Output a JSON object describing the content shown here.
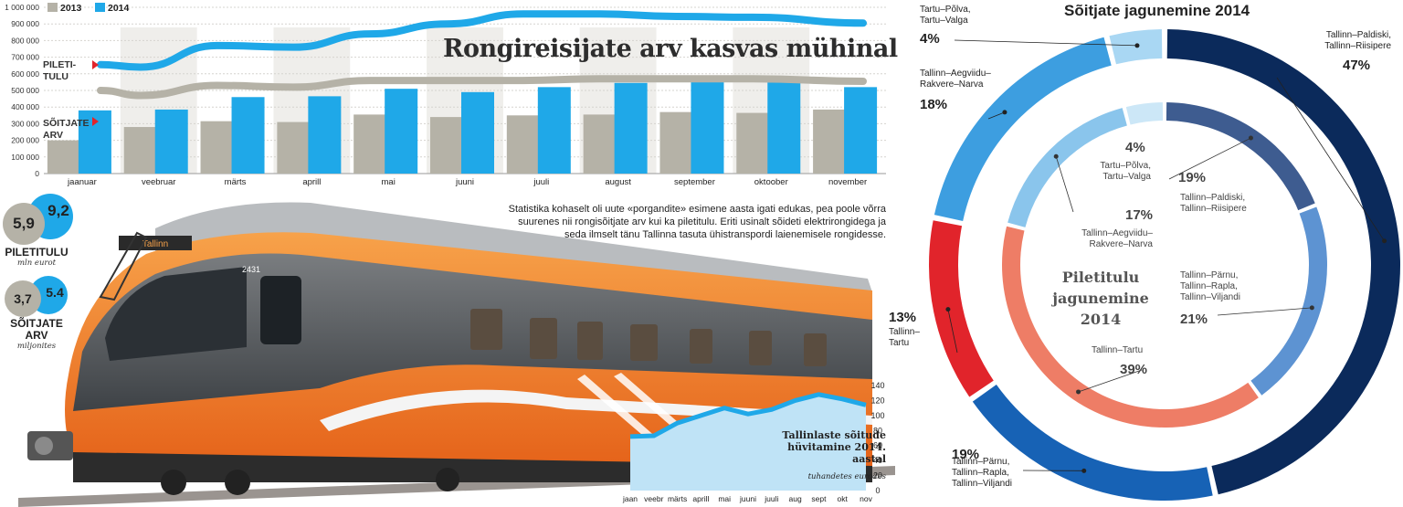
{
  "main_chart": {
    "headline": "Rongireisijate arv kasvas mühinal",
    "legend": [
      {
        "label": "2013",
        "color": "#b5b2a7"
      },
      {
        "label": "2014",
        "color": "#1fa8e8"
      }
    ],
    "label_revenue": [
      "PILETI-",
      "TULU"
    ],
    "label_passengers": [
      "SÕITJATE",
      "ARV"
    ]
  },
  "chart_data": [
    {
      "type": "bar",
      "categories": [
        "jaanuar",
        "veebruar",
        "märts",
        "aprill",
        "mai",
        "juuni",
        "juuli",
        "august",
        "september",
        "oktoober",
        "november"
      ],
      "series": [
        {
          "name": "2013",
          "values": [
            200000,
            280000,
            315000,
            310000,
            355000,
            340000,
            350000,
            355000,
            370000,
            365000,
            385000
          ]
        },
        {
          "name": "2014",
          "values": [
            380000,
            385000,
            460000,
            465000,
            510000,
            490000,
            520000,
            545000,
            575000,
            560000,
            520000
          ]
        }
      ],
      "lines": [
        {
          "name": "PILETITULU 2013",
          "values": [
            500000,
            470000,
            530000,
            520000,
            560000,
            560000,
            560000,
            570000,
            570000,
            570000,
            555000
          ]
        },
        {
          "name": "PILETITULU 2014",
          "values": [
            655000,
            640000,
            770000,
            760000,
            840000,
            900000,
            960000,
            960000,
            945000,
            940000,
            905000
          ]
        }
      ],
      "ylim": [
        0,
        1000000
      ],
      "yticks": [
        "0",
        "100 000",
        "200 000",
        "300 000",
        "400 000",
        "500 000",
        "600 000",
        "700 000",
        "800 000",
        "900 000",
        "1 000 000"
      ],
      "grid": true
    },
    {
      "type": "area",
      "title": "Tallinlaste sõitude hüvitamine 2014. aastal",
      "subtitle": "tuhandetes eurodes",
      "categories": [
        "jaan",
        "veebr",
        "märts",
        "aprill",
        "mai",
        "juuni",
        "juuli",
        "aug",
        "sept",
        "okt",
        "nov"
      ],
      "values": [
        72,
        73,
        90,
        100,
        110,
        102,
        108,
        120,
        128,
        122,
        114
      ],
      "ylim": [
        0,
        140
      ],
      "yticks": [
        "0",
        "20",
        "40",
        "60",
        "80",
        "100",
        "120",
        "140"
      ]
    },
    {
      "type": "pie",
      "title": "Sõitjate jagunemine 2014",
      "slices": [
        {
          "label": "Tallinn–Paldiski, Tallinn–Riisipere",
          "value": 47,
          "color": "#0b2a5b"
        },
        {
          "label": "Tallinn–Pärnu, Tallinn–Rapla, Tallinn–Viljandi",
          "value": 19,
          "color": "#1762b5"
        },
        {
          "label": "Tallinn–Tartu",
          "value": 13,
          "color": "#e1242b"
        },
        {
          "label": "Tallinn–Aegviidu–Rakvere–Narva",
          "value": 18,
          "color": "#3d9ee0"
        },
        {
          "label": "Tartu–Põlva, Tartu–Valga",
          "value": 4,
          "color": "#a9d7f3"
        }
      ]
    },
    {
      "type": "pie",
      "title": "Piletitulu jagunemine 2014",
      "slices": [
        {
          "label": "Tallinn–Paldiski, Tallinn–Riisipere",
          "value": 19,
          "color": "#3e5c90"
        },
        {
          "label": "Tallinn–Pärnu, Tallinn–Rapla, Tallinn–Viljandi",
          "value": 21,
          "color": "#5d93d2"
        },
        {
          "label": "Tallinn–Tartu",
          "value": 39,
          "color": "#ee7d66"
        },
        {
          "label": "Tallinn–Aegviidu–Rakvere–Narva",
          "value": 17,
          "color": "#8ac5ec"
        },
        {
          "label": "Tartu–Põlva, Tartu–Valga",
          "value": 4,
          "color": "#cce7f7"
        }
      ]
    }
  ],
  "kpis": {
    "revenue": {
      "v2013": "5,9",
      "v2014": "9,2",
      "label": "PILETITULU",
      "sub": "mln eurot"
    },
    "passengers": {
      "v2013": "3,7",
      "v2014": "5.4",
      "label": [
        "SÕITJATE",
        "ARV"
      ],
      "sub": "miljonites"
    }
  },
  "body_text": "Statistika kohaselt oli uute «porgandite» esimene aasta igati edukas, pea poole võrra suurenes nii rongisõitjate arv kui ka piletitulu. Eriti usinalt sõideti elektrirongidega ja seda ilmselt tänu Tallinna tasuta ühistranspordi laienemisele rongidesse.",
  "train": {
    "number": "2431",
    "dest_sign": "Tallinn"
  },
  "donut_labels": {
    "outer": [
      {
        "lines": [
          "Tallinn–Paldiski,",
          "Tallinn–Riisipere"
        ],
        "pct": "47%"
      },
      {
        "lines": [
          "Tallinn–Pärnu,",
          "Tallinn–Rapla,",
          "Tallinn–Viljandi"
        ],
        "pct": "19%"
      },
      {
        "lines": [
          "Tallinn–",
          "Tartu"
        ],
        "pct": "13%"
      },
      {
        "lines": [
          "Tallinn–Aegviidu–",
          "Rakvere–Narva"
        ],
        "pct": "18%"
      },
      {
        "lines": [
          "Tartu–Põlva,",
          "Tartu–Valga"
        ],
        "pct": "4%"
      }
    ],
    "inner": [
      {
        "lines": [
          "Tallinn–Paldiski,",
          "Tallinn–Riisipere"
        ],
        "pct": "19%"
      },
      {
        "lines": [
          "Tallinn–Pärnu,",
          "Tallinn–Rapla,",
          "Tallinn–Viljandi"
        ],
        "pct": "21%"
      },
      {
        "lines": [
          "Tallinn–Tartu"
        ],
        "pct": "39%"
      },
      {
        "lines": [
          "Tallinn–Aegviidu–",
          "Rakvere–Narva"
        ],
        "pct": "17%"
      },
      {
        "lines": [
          "Tartu–Põlva,",
          "Tartu–Valga"
        ],
        "pct": "4%"
      }
    ],
    "inner_title": [
      "Piletitulu",
      "jagunemine",
      "2014"
    ]
  }
}
